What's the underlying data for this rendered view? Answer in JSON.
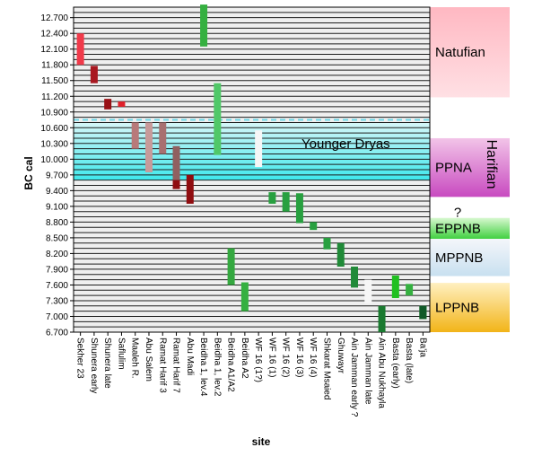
{
  "chart_data": {
    "type": "range-bar",
    "xlabel": "site",
    "ylabel": "BC cal",
    "yticks": [
      "12.700",
      "12.400",
      "12.100",
      "11.800",
      "11.500",
      "11.200",
      "10.900",
      "10.600",
      "10.300",
      "10.000",
      "9.700",
      "9.400",
      "9.100",
      "8.800",
      "8.500",
      "8.200",
      "7.900",
      "7.600",
      "7.300",
      "7.000",
      "6.700"
    ],
    "ylim": [
      6700,
      12900
    ],
    "categories": [
      "Sekher 23",
      "Shunera early",
      "Shunera late",
      "Saflulim",
      "Maaleh R.",
      "Abu Salem",
      "Ramat Harif 3",
      "Ramat Harif 7",
      "Abu Madi",
      "Beidha 1, lev.4",
      "Beidha 1, lev.2",
      "Beidha A1/A2",
      "Beidha A2",
      "WF 16 (1?)",
      "WF 16 (1)",
      "WF 16 (2)",
      "WF 16 (3)",
      "WF 16 (4)",
      "Shkarat Msaied",
      "Ghuwayr",
      "Ain Jamman early ?",
      "Ain Jamman late",
      "Ain Abu Nukhayla",
      "Basta (early)",
      "Basta (late)",
      "Ba'ja"
    ],
    "ranges": [
      {
        "site": "Sekher 23",
        "from": 11800,
        "to": 12400,
        "color": "#f03a4a"
      },
      {
        "site": "Shunera early",
        "from": 11450,
        "to": 11780,
        "color": "#a81820"
      },
      {
        "site": "Shunera late",
        "from": 10950,
        "to": 11150,
        "color": "#980f14"
      },
      {
        "site": "Saflulim",
        "from": 11000,
        "to": 11100,
        "color": "#e0202a"
      },
      {
        "site": "Maaleh R.",
        "from": 10200,
        "to": 10700,
        "color": "#b87a7a"
      },
      {
        "site": "Abu Salem",
        "from": 9750,
        "to": 10700,
        "color": "#c89a9a"
      },
      {
        "site": "Ramat Harif 3",
        "from": 10100,
        "to": 10700,
        "color": "#a87070"
      },
      {
        "site": "Ramat Harif 7",
        "from": 9600,
        "to": 10250,
        "color": "#906060"
      },
      {
        "site": "Ramat Harif 7",
        "from": 9430,
        "to": 9600,
        "color": "#900d10"
      },
      {
        "site": "Abu Madi",
        "from": 9150,
        "to": 9700,
        "color": "#900d10"
      },
      {
        "site": "Beidha 1, lev.4",
        "from": 12150,
        "to": 12950,
        "color": "#35b040"
      },
      {
        "site": "Beidha 1, lev.2",
        "from": 10080,
        "to": 11450,
        "color": "#50c868"
      },
      {
        "site": "Beidha A1/A2",
        "from": 7600,
        "to": 8300,
        "color": "#35a840"
      },
      {
        "site": "Beidha A2",
        "from": 7100,
        "to": 7650,
        "color": "#35b040"
      },
      {
        "site": "WF 16 (1?)",
        "from": 9850,
        "to": 10550,
        "color": "#f6f6f6"
      },
      {
        "site": "WF 16 (1)",
        "from": 9150,
        "to": 9370,
        "color": "#28a040"
      },
      {
        "site": "WF 16 (2)",
        "from": 9000,
        "to": 9370,
        "color": "#28a040"
      },
      {
        "site": "WF 16 (3)",
        "from": 8780,
        "to": 9350,
        "color": "#28a040"
      },
      {
        "site": "WF 16 (4)",
        "from": 8650,
        "to": 8800,
        "color": "#28a040"
      },
      {
        "site": "Shkarat Msaied",
        "from": 8280,
        "to": 8500,
        "color": "#28a040"
      },
      {
        "site": "Ghuwayr",
        "from": 7950,
        "to": 8400,
        "color": "#208a38"
      },
      {
        "site": "Ain Jamman early ?",
        "from": 7550,
        "to": 7950,
        "color": "#208a38"
      },
      {
        "site": "Ain Jamman late",
        "from": 7250,
        "to": 7700,
        "color": "#f6f6f6"
      },
      {
        "site": "Ain Abu Nukhayla",
        "from": 6700,
        "to": 7200,
        "color": "#1a7a30"
      },
      {
        "site": "Basta (early)",
        "from": 7350,
        "to": 7780,
        "color": "#20c020"
      },
      {
        "site": "Basta (late)",
        "from": 7400,
        "to": 7620,
        "color": "#35b040"
      },
      {
        "site": "Ba'ja",
        "from": 6950,
        "to": 7200,
        "color": "#35b040"
      },
      {
        "site": "Ba'ja",
        "from": 6950,
        "to": 7200,
        "color": "#105a28"
      }
    ],
    "younger_dryas": {
      "label": "Younger Dryas",
      "from": 9600,
      "to": 10700,
      "upper_line": 10750
    },
    "periods": [
      {
        "label": "Natufian",
        "from": 11180,
        "to": 12900,
        "top": "#ffb8c2",
        "bottom": "#ffe0e4"
      },
      {
        "label": "PPNA",
        "from": 9280,
        "to": 10400,
        "top": "#f2c4e8",
        "bottom": "#c84ac0"
      },
      {
        "label": "EPPNB",
        "from": 8480,
        "to": 8880,
        "top": "#d8f8d0",
        "bottom": "#40d040"
      },
      {
        "label": "MPPNB",
        "from": 7770,
        "to": 8480,
        "top": "#f4f6fa",
        "bottom": "#c8e0f0"
      },
      {
        "label": "LPPNB",
        "from": 6700,
        "to": 7640,
        "top": "#fff0c0",
        "bottom": "#f2b418"
      }
    ],
    "harifian_label": "Harifian",
    "question_label": "?"
  }
}
